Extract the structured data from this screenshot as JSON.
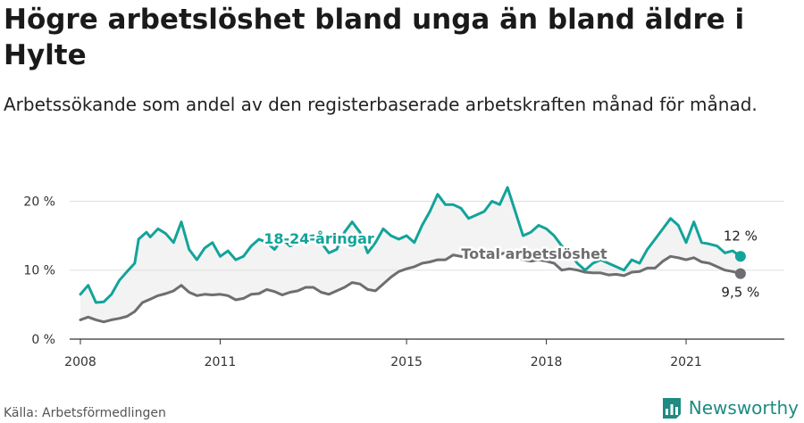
{
  "header": {
    "title": "Högre arbetslöshet bland unga än bland äldre i Hylte",
    "subtitle": "Arbetssökande som andel av den registerbaserade arbetskraften månad för månad."
  },
  "footer": {
    "source": "Källa: Arbetsförmedlingen",
    "brand": "Newsworthy"
  },
  "colors": {
    "youth": "#13a39a",
    "total": "#6e6e72",
    "band": "#f3f3f3",
    "grid": "#e0e0e0",
    "brand": "#1f8a82"
  },
  "chart_data": {
    "type": "line",
    "x_range": [
      "2008-01",
      "2022-12"
    ],
    "ylim": [
      0,
      22
    ],
    "y_ticks": [
      {
        "value": 0,
        "label": "0 %"
      },
      {
        "value": 10,
        "label": "10 %"
      },
      {
        "value": 20,
        "label": "20 %"
      }
    ],
    "x_ticks": [
      {
        "date": "2008-01",
        "label": "2008"
      },
      {
        "date": "2011-01",
        "label": "2011"
      },
      {
        "date": "2015-01",
        "label": "2015"
      },
      {
        "date": "2018-01",
        "label": "2018"
      },
      {
        "date": "2021-01",
        "label": "2021"
      }
    ],
    "grid": "horizontal",
    "shaded_between_series": true,
    "series": [
      {
        "name": "18-24-åringar",
        "key": "youth",
        "end_label": "12 %",
        "points": [
          [
            "2008-01",
            6.5
          ],
          [
            "2008-03",
            7.8
          ],
          [
            "2008-05",
            5.3
          ],
          [
            "2008-07",
            5.4
          ],
          [
            "2008-09",
            6.5
          ],
          [
            "2008-11",
            8.5
          ],
          [
            "2009-01",
            9.8
          ],
          [
            "2009-03",
            11.0
          ],
          [
            "2009-04",
            14.5
          ],
          [
            "2009-06",
            15.5
          ],
          [
            "2009-07",
            14.8
          ],
          [
            "2009-09",
            16.0
          ],
          [
            "2009-11",
            15.3
          ],
          [
            "2010-01",
            14.0
          ],
          [
            "2010-03",
            17.0
          ],
          [
            "2010-05",
            13.0
          ],
          [
            "2010-07",
            11.5
          ],
          [
            "2010-09",
            13.2
          ],
          [
            "2010-11",
            14.0
          ],
          [
            "2011-01",
            12.0
          ],
          [
            "2011-03",
            12.8
          ],
          [
            "2011-05",
            11.5
          ],
          [
            "2011-07",
            12.0
          ],
          [
            "2011-09",
            13.5
          ],
          [
            "2011-11",
            14.5
          ],
          [
            "2012-01",
            14.0
          ],
          [
            "2012-03",
            13.0
          ],
          [
            "2012-05",
            14.5
          ],
          [
            "2012-07",
            13.5
          ],
          [
            "2012-09",
            14.0
          ],
          [
            "2012-11",
            14.8
          ],
          [
            "2013-01",
            15.0
          ],
          [
            "2013-03",
            14.0
          ],
          [
            "2013-05",
            12.5
          ],
          [
            "2013-07",
            13.0
          ],
          [
            "2013-09",
            15.5
          ],
          [
            "2013-11",
            17.0
          ],
          [
            "2014-01",
            15.5
          ],
          [
            "2014-03",
            12.5
          ],
          [
            "2014-05",
            14.0
          ],
          [
            "2014-07",
            16.0
          ],
          [
            "2014-09",
            15.0
          ],
          [
            "2014-11",
            14.5
          ],
          [
            "2015-01",
            15.0
          ],
          [
            "2015-03",
            14.0
          ],
          [
            "2015-05",
            16.5
          ],
          [
            "2015-07",
            18.5
          ],
          [
            "2015-09",
            21.0
          ],
          [
            "2015-11",
            19.5
          ],
          [
            "2016-01",
            19.5
          ],
          [
            "2016-03",
            19.0
          ],
          [
            "2016-05",
            17.5
          ],
          [
            "2016-07",
            18.0
          ],
          [
            "2016-09",
            18.5
          ],
          [
            "2016-11",
            20.0
          ],
          [
            "2017-01",
            19.5
          ],
          [
            "2017-03",
            22.0
          ],
          [
            "2017-05",
            18.5
          ],
          [
            "2017-07",
            15.0
          ],
          [
            "2017-09",
            15.5
          ],
          [
            "2017-11",
            16.5
          ],
          [
            "2018-01",
            16.0
          ],
          [
            "2018-03",
            15.0
          ],
          [
            "2018-05",
            13.5
          ],
          [
            "2018-07",
            12.5
          ],
          [
            "2018-09",
            11.0
          ],
          [
            "2018-11",
            10.0
          ],
          [
            "2019-01",
            11.0
          ],
          [
            "2019-03",
            11.5
          ],
          [
            "2019-05",
            11.0
          ],
          [
            "2019-07",
            10.5
          ],
          [
            "2019-09",
            10.0
          ],
          [
            "2019-11",
            11.5
          ],
          [
            "2020-01",
            11.0
          ],
          [
            "2020-03",
            13.0
          ],
          [
            "2020-05",
            14.5
          ],
          [
            "2020-07",
            16.0
          ],
          [
            "2020-09",
            17.5
          ],
          [
            "2020-11",
            16.5
          ],
          [
            "2021-01",
            14.0
          ],
          [
            "2021-03",
            17.0
          ],
          [
            "2021-05",
            14.0
          ],
          [
            "2021-07",
            13.8
          ],
          [
            "2021-09",
            13.5
          ],
          [
            "2021-11",
            12.5
          ],
          [
            "2022-01",
            12.8
          ],
          [
            "2022-03",
            12.0
          ]
        ]
      },
      {
        "name": "Total arbetslöshet",
        "key": "total",
        "end_label": "9,5 %",
        "points": [
          [
            "2008-01",
            2.8
          ],
          [
            "2008-03",
            3.2
          ],
          [
            "2008-05",
            2.8
          ],
          [
            "2008-07",
            2.5
          ],
          [
            "2008-09",
            2.8
          ],
          [
            "2008-11",
            3.0
          ],
          [
            "2009-01",
            3.3
          ],
          [
            "2009-03",
            4.0
          ],
          [
            "2009-05",
            5.3
          ],
          [
            "2009-07",
            5.8
          ],
          [
            "2009-09",
            6.3
          ],
          [
            "2009-11",
            6.6
          ],
          [
            "2010-01",
            7.0
          ],
          [
            "2010-03",
            7.8
          ],
          [
            "2010-05",
            6.8
          ],
          [
            "2010-07",
            6.3
          ],
          [
            "2010-09",
            6.5
          ],
          [
            "2010-11",
            6.4
          ],
          [
            "2011-01",
            6.5
          ],
          [
            "2011-03",
            6.3
          ],
          [
            "2011-05",
            5.7
          ],
          [
            "2011-07",
            5.9
          ],
          [
            "2011-09",
            6.5
          ],
          [
            "2011-11",
            6.6
          ],
          [
            "2012-01",
            7.2
          ],
          [
            "2012-03",
            6.9
          ],
          [
            "2012-05",
            6.4
          ],
          [
            "2012-07",
            6.8
          ],
          [
            "2012-09",
            7.0
          ],
          [
            "2012-11",
            7.5
          ],
          [
            "2013-01",
            7.5
          ],
          [
            "2013-03",
            6.8
          ],
          [
            "2013-05",
            6.5
          ],
          [
            "2013-07",
            7.0
          ],
          [
            "2013-09",
            7.5
          ],
          [
            "2013-11",
            8.2
          ],
          [
            "2014-01",
            8.0
          ],
          [
            "2014-03",
            7.2
          ],
          [
            "2014-05",
            7.0
          ],
          [
            "2014-07",
            8.0
          ],
          [
            "2014-09",
            9.0
          ],
          [
            "2014-11",
            9.8
          ],
          [
            "2015-01",
            10.2
          ],
          [
            "2015-03",
            10.5
          ],
          [
            "2015-05",
            11.0
          ],
          [
            "2015-07",
            11.2
          ],
          [
            "2015-09",
            11.5
          ],
          [
            "2015-11",
            11.5
          ],
          [
            "2016-01",
            12.2
          ],
          [
            "2016-03",
            12.0
          ],
          [
            "2016-05",
            11.8
          ],
          [
            "2016-07",
            12.0
          ],
          [
            "2016-09",
            12.2
          ],
          [
            "2016-11",
            12.5
          ],
          [
            "2017-01",
            12.3
          ],
          [
            "2017-03",
            12.6
          ],
          [
            "2017-05",
            12.0
          ],
          [
            "2017-07",
            11.5
          ],
          [
            "2017-09",
            11.3
          ],
          [
            "2017-11",
            11.5
          ],
          [
            "2018-01",
            11.3
          ],
          [
            "2018-03",
            11.0
          ],
          [
            "2018-05",
            10.0
          ],
          [
            "2018-07",
            10.2
          ],
          [
            "2018-09",
            10.0
          ],
          [
            "2018-11",
            9.7
          ],
          [
            "2019-01",
            9.6
          ],
          [
            "2019-03",
            9.6
          ],
          [
            "2019-05",
            9.3
          ],
          [
            "2019-07",
            9.4
          ],
          [
            "2019-09",
            9.2
          ],
          [
            "2019-11",
            9.7
          ],
          [
            "2020-01",
            9.8
          ],
          [
            "2020-03",
            10.3
          ],
          [
            "2020-05",
            10.3
          ],
          [
            "2020-07",
            11.3
          ],
          [
            "2020-09",
            12.0
          ],
          [
            "2020-11",
            11.8
          ],
          [
            "2021-01",
            11.5
          ],
          [
            "2021-03",
            11.8
          ],
          [
            "2021-05",
            11.2
          ],
          [
            "2021-07",
            11.0
          ],
          [
            "2021-09",
            10.5
          ],
          [
            "2021-11",
            10.0
          ],
          [
            "2022-01",
            9.8
          ],
          [
            "2022-03",
            9.5
          ]
        ]
      }
    ]
  }
}
